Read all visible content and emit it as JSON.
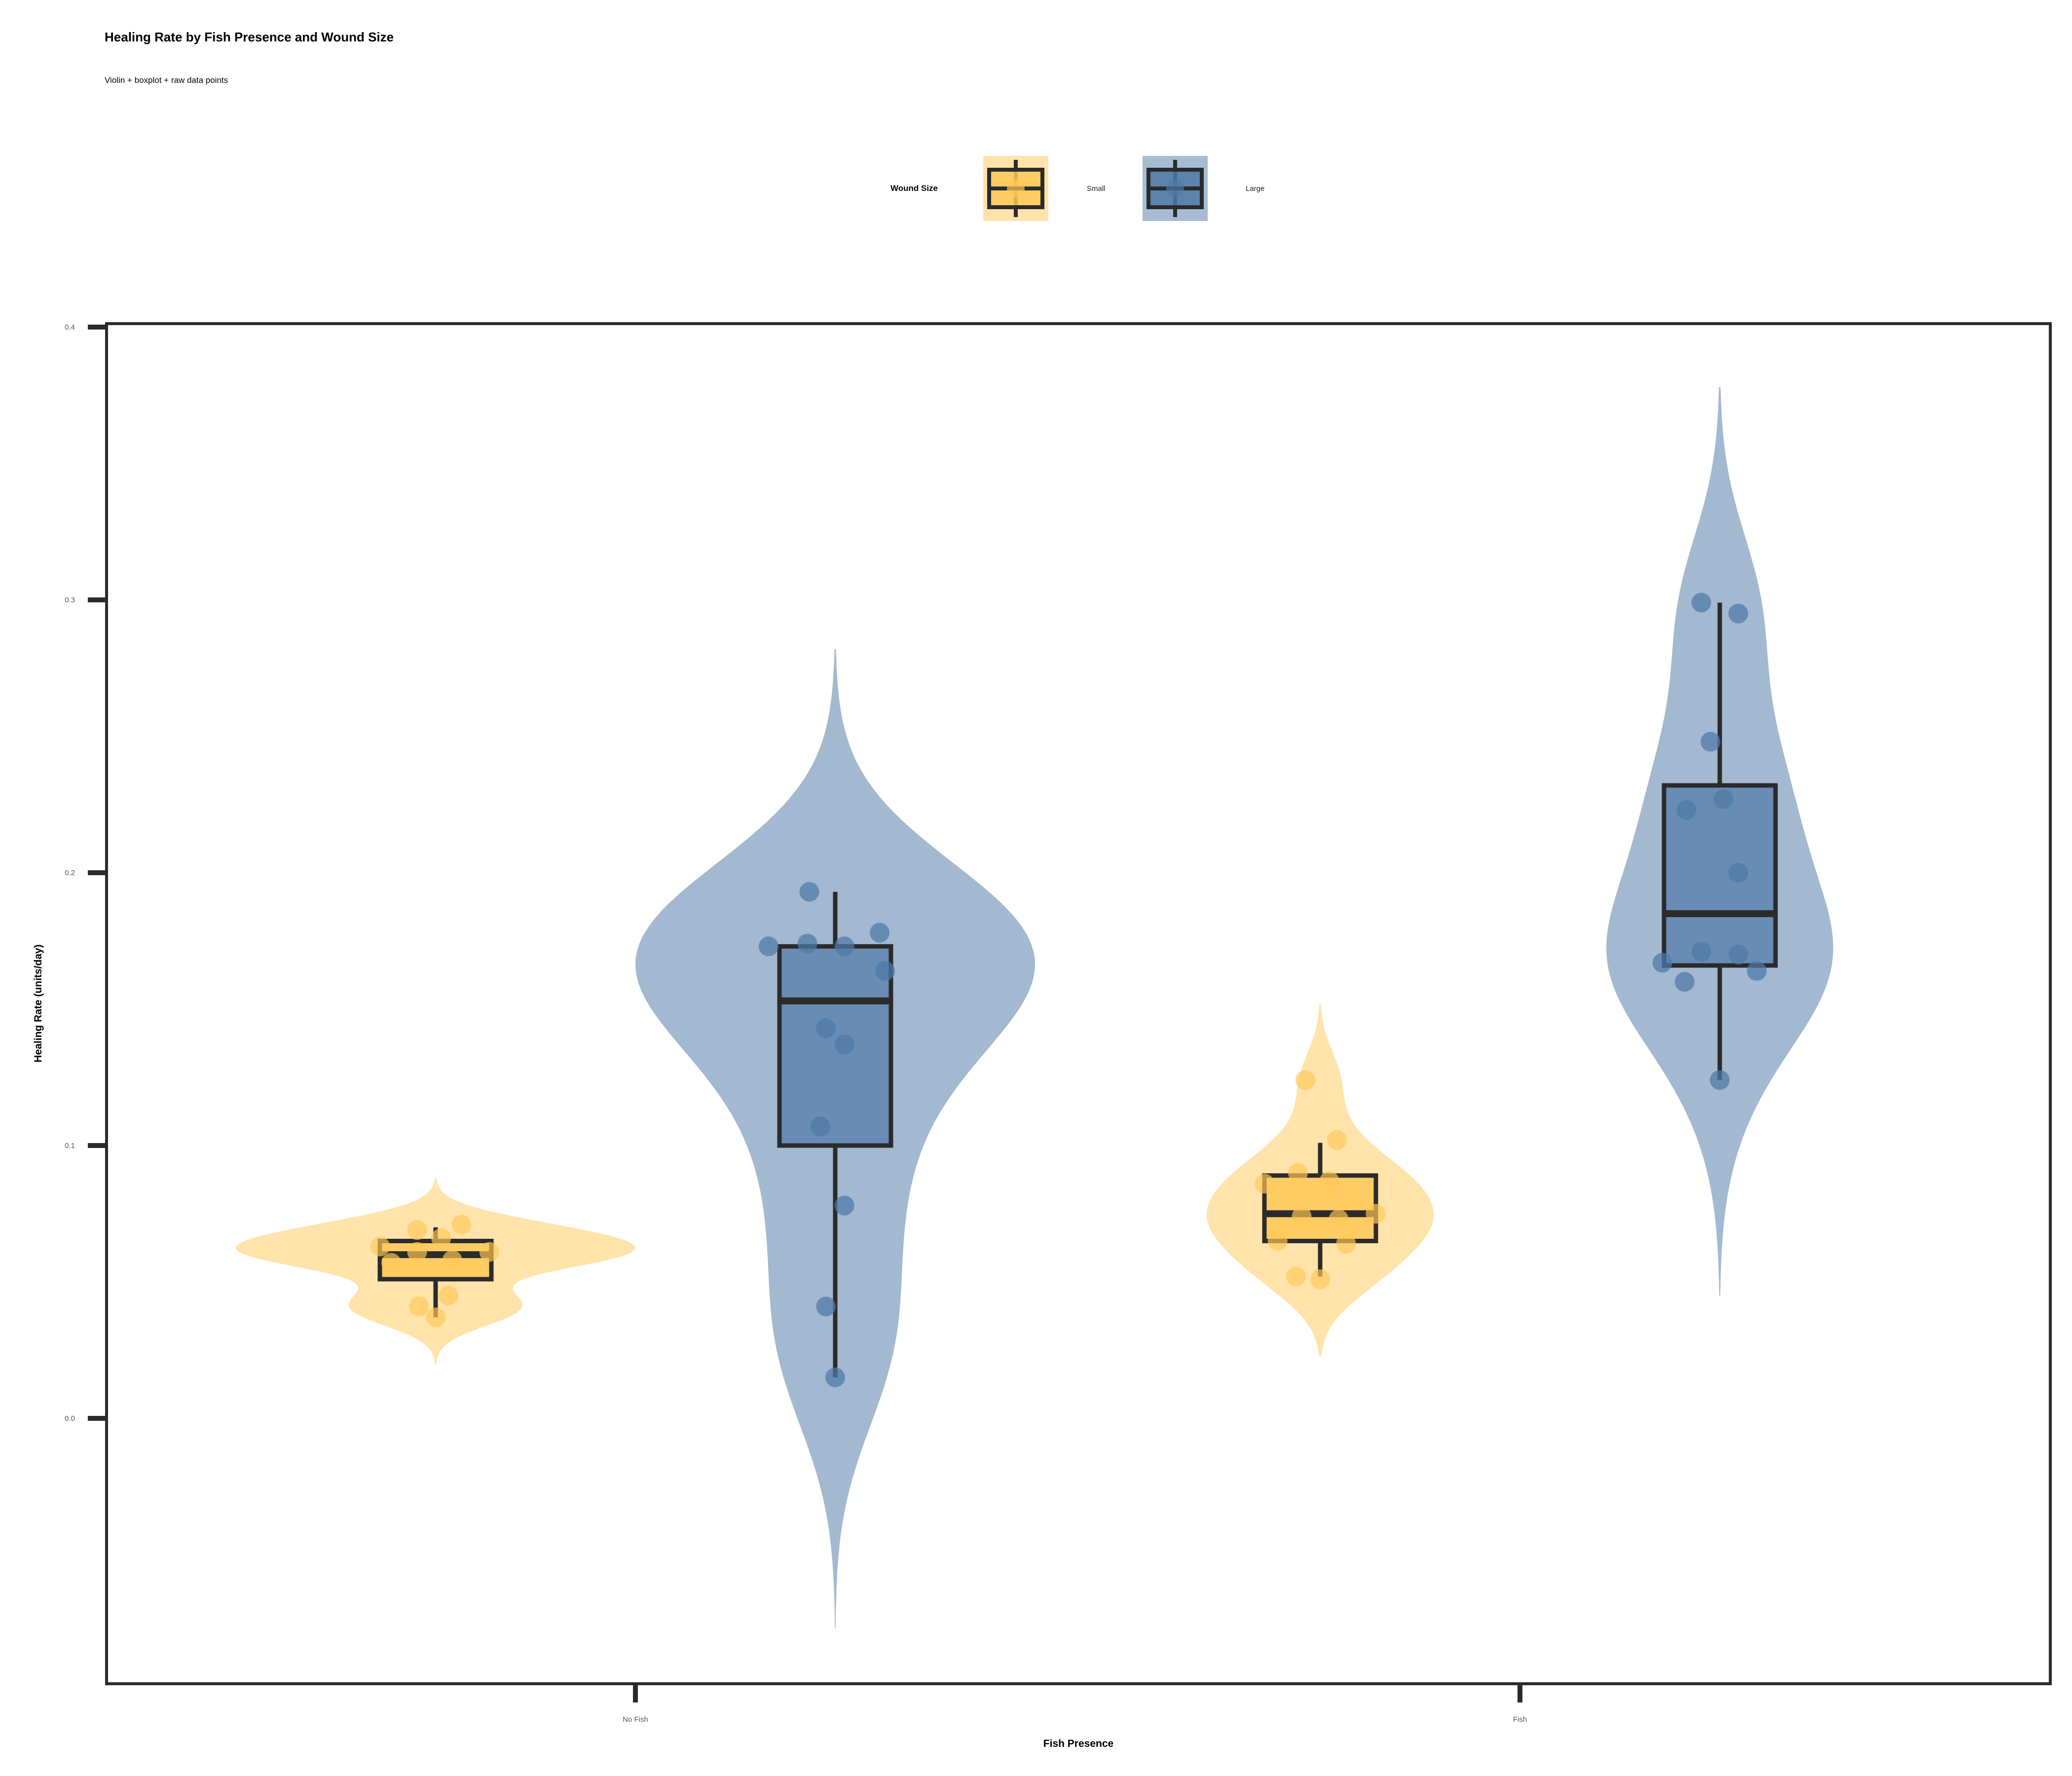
{
  "chart_data": {
    "type": "violin",
    "title": "Healing Rate by Fish Presence and Wound Size",
    "subtitle": "Violin + boxplot + raw data points",
    "xlabel": "Fish Presence",
    "ylabel": "Healing Rate (units/day)",
    "categories": [
      "No Fish",
      "Fish"
    ],
    "ylim": [
      -0.098,
      0.402
    ],
    "yticks": [
      0.0,
      0.1,
      0.2,
      0.3,
      0.4
    ],
    "ytick_labels": [
      "0.0",
      "0.1",
      "0.2",
      "0.3",
      "0.4"
    ],
    "grid": false,
    "legend": {
      "title": "Wound Size",
      "placement": "top-center",
      "entries": [
        "Small",
        "Large"
      ]
    },
    "series": [
      {
        "name": "Small",
        "color": "#FFC857",
        "groups": [
          {
            "category": "No Fish",
            "box": {
              "whisker_low": 0.037,
              "q1": 0.051,
              "median": 0.06,
              "q3": 0.065,
              "whisker_high": 0.07
            },
            "violin_range": [
              0.02,
              0.088
            ],
            "points": [
              {
                "dx": -0.3,
                "y": 0.063
              },
              {
                "dx": -0.24,
                "y": 0.057
              },
              {
                "dx": -0.1,
                "y": 0.069
              },
              {
                "dx": -0.1,
                "y": 0.061
              },
              {
                "dx": -0.09,
                "y": 0.041
              },
              {
                "dx": 0.0,
                "y": 0.037
              },
              {
                "dx": 0.03,
                "y": 0.066
              },
              {
                "dx": 0.07,
                "y": 0.045
              },
              {
                "dx": 0.09,
                "y": 0.058
              },
              {
                "dx": 0.14,
                "y": 0.071
              },
              {
                "dx": 0.29,
                "y": 0.061
              }
            ]
          },
          {
            "category": "Fish",
            "box": {
              "whisker_low": 0.052,
              "q1": 0.065,
              "median": 0.075,
              "q3": 0.089,
              "whisker_high": 0.101
            },
            "violin_range": [
              0.023,
              0.152
            ],
            "points": [
              {
                "dx": -0.3,
                "y": 0.086
              },
              {
                "dx": -0.23,
                "y": 0.065
              },
              {
                "dx": -0.13,
                "y": 0.052
              },
              {
                "dx": -0.12,
                "y": 0.09
              },
              {
                "dx": -0.1,
                "y": 0.074
              },
              {
                "dx": -0.08,
                "y": 0.124
              },
              {
                "dx": 0.0,
                "y": 0.051
              },
              {
                "dx": 0.05,
                "y": 0.087
              },
              {
                "dx": 0.09,
                "y": 0.102
              },
              {
                "dx": 0.1,
                "y": 0.073
              },
              {
                "dx": 0.14,
                "y": 0.064
              },
              {
                "dx": 0.3,
                "y": 0.075
              }
            ]
          }
        ]
      },
      {
        "name": "Large",
        "color": "#4E79A7",
        "groups": [
          {
            "category": "No Fish",
            "box": {
              "whisker_low": 0.015,
              "q1": 0.1,
              "median": 0.153,
              "q3": 0.173,
              "whisker_high": 0.193
            },
            "violin_range": [
              -0.077,
              0.282
            ],
            "points": [
              {
                "dx": -0.36,
                "y": 0.173
              },
              {
                "dx": -0.15,
                "y": 0.174
              },
              {
                "dx": -0.14,
                "y": 0.193
              },
              {
                "dx": -0.08,
                "y": 0.107
              },
              {
                "dx": -0.05,
                "y": 0.143
              },
              {
                "dx": -0.05,
                "y": 0.041
              },
              {
                "dx": 0.0,
                "y": 0.015
              },
              {
                "dx": 0.05,
                "y": 0.173
              },
              {
                "dx": 0.05,
                "y": 0.137
              },
              {
                "dx": 0.05,
                "y": 0.078
              },
              {
                "dx": 0.24,
                "y": 0.178
              },
              {
                "dx": 0.27,
                "y": 0.164
              }
            ]
          },
          {
            "category": "Fish",
            "box": {
              "whisker_low": 0.124,
              "q1": 0.166,
              "median": 0.185,
              "q3": 0.232,
              "whisker_high": 0.299
            },
            "violin_range": [
              0.045,
              0.378
            ],
            "points": [
              {
                "dx": -0.31,
                "y": 0.167
              },
              {
                "dx": -0.19,
                "y": 0.16
              },
              {
                "dx": -0.18,
                "y": 0.223
              },
              {
                "dx": -0.1,
                "y": 0.299
              },
              {
                "dx": -0.1,
                "y": 0.171
              },
              {
                "dx": -0.05,
                "y": 0.248
              },
              {
                "dx": 0.0,
                "y": 0.124
              },
              {
                "dx": 0.02,
                "y": 0.227
              },
              {
                "dx": 0.1,
                "y": 0.295
              },
              {
                "dx": 0.1,
                "y": 0.2
              },
              {
                "dx": 0.1,
                "y": 0.17
              },
              {
                "dx": 0.2,
                "y": 0.164
              }
            ]
          }
        ]
      }
    ]
  }
}
